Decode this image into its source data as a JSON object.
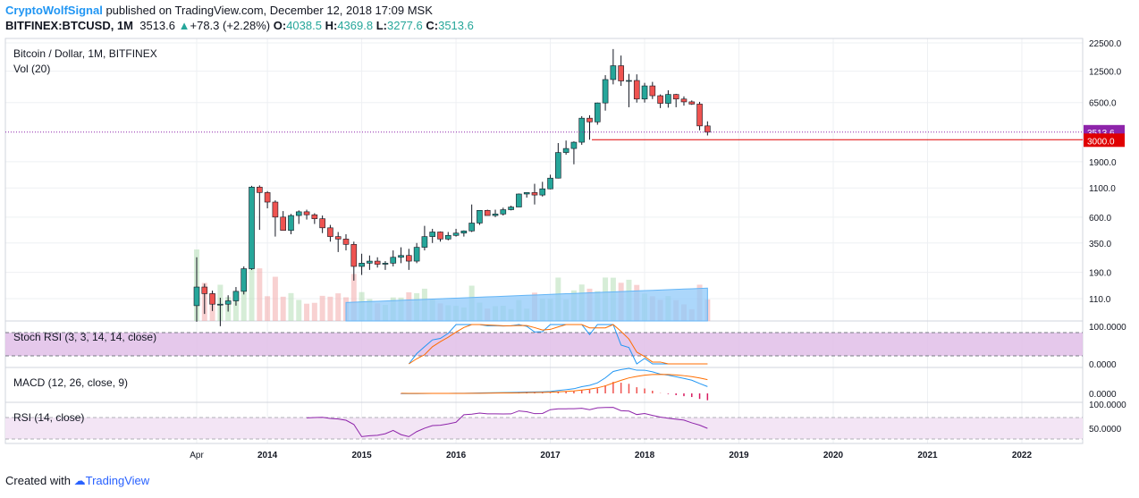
{
  "header": {
    "author": "CryptoWolfSignal",
    "published_text": "published on TradingView.com, December 12, 2018 17:09 MSK",
    "symbol": "BITFINEX:BTCUSD, 1M",
    "last": "3513.6",
    "change_arrow": "▲",
    "change": "+78.3 (+2.28%)",
    "ohlc": {
      "o_label": "O:",
      "o": "4038.5",
      "h_label": "H:",
      "h": "4369.8",
      "l_label": "L:",
      "l": "3277.6",
      "c_label": "C:",
      "c": "3513.6"
    }
  },
  "panes": {
    "main_title": "Bitcoin / Dollar, 1M, BITFINEX",
    "vol_title": "Vol (20)",
    "stoch_title": "Stoch RSI (3, 3, 14, 14, close)",
    "macd_title": "MACD (12, 26, close, 9)",
    "rsi_title": "RSI (14, close)"
  },
  "footer": {
    "prefix": "Created with",
    "brand": "TradingView"
  },
  "colors": {
    "up": "#26a69a",
    "down": "#ef5350",
    "accent": "#2196f3",
    "price_label": "#8e24aa",
    "level_label": "#e00000",
    "stoch_fill": "#e1bee7",
    "rsi_line": "#8e24aa",
    "macd_line": "#2196f3",
    "signal_line": "#ff6d00"
  },
  "chart_data": {
    "type": "candlestick",
    "title": "Bitcoin / Dollar, 1M, BITFINEX",
    "scale": "log",
    "price_ticks": [
      "22500.0",
      "12500.0",
      "6500.0",
      "3513.6",
      "3000.0",
      "1900.0",
      "1100.0",
      "600.0",
      "350.0",
      "190.0",
      "110.0"
    ],
    "price_tick_values": [
      22500,
      12500,
      6500,
      3513.6,
      3000,
      1900,
      1100,
      600,
      350,
      190,
      110
    ],
    "current_price": 3513.6,
    "horizontal_level": 3000,
    "x_labels": [
      "Apr",
      "2014",
      "2015",
      "2016",
      "2017",
      "2018",
      "2019",
      "2020",
      "2021",
      "2022"
    ],
    "x_label_dates": [
      "2013-04",
      "2014-01",
      "2015-01",
      "2016-01",
      "2017-01",
      "2018-01",
      "2019-01",
      "2020-01",
      "2021-01",
      "2022-01"
    ],
    "start_month": "2013-04",
    "ohlc_approx": [
      [
        95,
        260,
        68,
        140
      ],
      [
        140,
        150,
        80,
        122
      ],
      [
        122,
        130,
        85,
        98
      ],
      [
        98,
        112,
        62,
        98
      ],
      [
        98,
        118,
        84,
        105
      ],
      [
        105,
        140,
        95,
        128
      ],
      [
        128,
        215,
        120,
        205
      ],
      [
        205,
        1150,
        200,
        1120
      ],
      [
        1120,
        1160,
        460,
        1000
      ],
      [
        1000,
        1030,
        720,
        820
      ],
      [
        820,
        850,
        400,
        600
      ],
      [
        600,
        680,
        480,
        455
      ],
      [
        455,
        640,
        420,
        620
      ],
      [
        620,
        690,
        520,
        670
      ],
      [
        670,
        700,
        570,
        630
      ],
      [
        630,
        650,
        520,
        580
      ],
      [
        580,
        620,
        430,
        480
      ],
      [
        480,
        510,
        360,
        400
      ],
      [
        400,
        440,
        290,
        380
      ],
      [
        380,
        420,
        300,
        340
      ],
      [
        340,
        360,
        160,
        215
      ],
      [
        215,
        280,
        180,
        230
      ],
      [
        230,
        270,
        200,
        240
      ],
      [
        240,
        260,
        210,
        225
      ],
      [
        225,
        240,
        200,
        230
      ],
      [
        230,
        300,
        215,
        260
      ],
      [
        260,
        320,
        230,
        270
      ],
      [
        270,
        310,
        200,
        240
      ],
      [
        240,
        350,
        230,
        320
      ],
      [
        320,
        500,
        300,
        400
      ],
      [
        400,
        470,
        350,
        440
      ],
      [
        440,
        445,
        360,
        380
      ],
      [
        380,
        440,
        370,
        410
      ],
      [
        410,
        470,
        400,
        430
      ],
      [
        430,
        455,
        400,
        450
      ],
      [
        450,
        780,
        440,
        530
      ],
      [
        530,
        640,
        510,
        690
      ],
      [
        690,
        700,
        630,
        620
      ],
      [
        620,
        700,
        600,
        640
      ],
      [
        640,
        730,
        620,
        700
      ],
      [
        700,
        760,
        690,
        740
      ],
      [
        740,
        980,
        740,
        970
      ],
      [
        970,
        1000,
        900,
        1000
      ],
      [
        1000,
        1200,
        780,
        950
      ],
      [
        950,
        1250,
        920,
        1080
      ],
      [
        1080,
        1450,
        1070,
        1350
      ],
      [
        1350,
        2800,
        1340,
        2300
      ],
      [
        2300,
        2950,
        2200,
        2500
      ],
      [
        2500,
        2900,
        1800,
        2850
      ],
      [
        2850,
        4900,
        2700,
        4700
      ],
      [
        4700,
        5000,
        3000,
        4350
      ],
      [
        4350,
        6500,
        4100,
        6450
      ],
      [
        6450,
        11500,
        5500,
        10500
      ],
      [
        10500,
        19800,
        9500,
        14000
      ],
      [
        14000,
        17300,
        9200,
        10200
      ],
      [
        10200,
        11800,
        5900,
        10300
      ],
      [
        10300,
        11700,
        6500,
        7000
      ],
      [
        7000,
        9800,
        6500,
        9200
      ],
      [
        9200,
        10000,
        7000,
        7500
      ],
      [
        7500,
        7700,
        5800,
        6400
      ],
      [
        6400,
        8400,
        5850,
        7700
      ],
      [
        7700,
        7800,
        5900,
        7000
      ],
      [
        7000,
        7400,
        6100,
        6600
      ],
      [
        6600,
        6800,
        6200,
        6300
      ],
      [
        6300,
        6600,
        3650,
        4000
      ],
      [
        4000,
        4400,
        3280,
        3513.6
      ]
    ],
    "indicators": {
      "stoch_rsi": {
        "levels": [
          80,
          20
        ],
        "scale_ticks": [
          "100.0000",
          "0.0000"
        ]
      },
      "macd": {
        "scale_ticks": [
          "0.0000"
        ]
      },
      "rsi": {
        "levels": [
          70,
          30
        ],
        "scale_ticks": [
          "100.0000",
          "50.0000"
        ]
      }
    }
  }
}
